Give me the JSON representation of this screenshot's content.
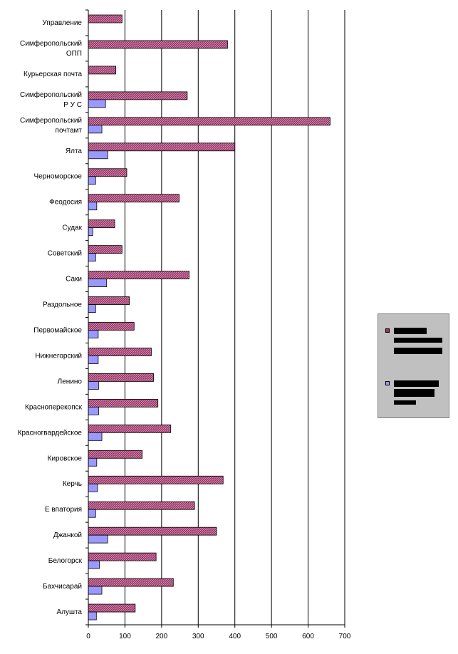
{
  "chart_data": {
    "type": "bar",
    "orientation": "horizontal",
    "categories": [
      "Управление",
      "Симферопольский ОПП",
      "Курьерская почта",
      "Симферопольский РУС",
      "Симферопольский почтамт",
      "Ялта",
      "Черноморское",
      "Феодосия",
      "Судак",
      "Советский",
      "Саки",
      "Раздольное",
      "Первомайское",
      "Нижнегорский",
      "Ленино",
      "Красноперекопск",
      "Красногвардейское",
      "Кировское",
      "Керчь",
      "Евпатория",
      "Джанкой",
      "Белогорск",
      "Бахчисарай",
      "Алушта"
    ],
    "category_lines": [
      [
        "Управление"
      ],
      [
        "Симферопольский",
        "ОПП"
      ],
      [
        "Курьерская почта"
      ],
      [
        "Симферопольский",
        "Р У С"
      ],
      [
        "Симферопольский",
        "почтамт"
      ],
      [
        "Ялта"
      ],
      [
        "Черноморское"
      ],
      [
        "Феодосия"
      ],
      [
        "Судак"
      ],
      [
        "Советский"
      ],
      [
        "Саки"
      ],
      [
        "Раздольное"
      ],
      [
        "Первомайское"
      ],
      [
        "Нижнегорский"
      ],
      [
        "Ленино"
      ],
      [
        "Красноперекопск"
      ],
      [
        "Красногвардейское"
      ],
      [
        "Кировское"
      ],
      [
        "Керчь"
      ],
      [
        "Е впатория"
      ],
      [
        "Джанкой"
      ],
      [
        "Белогорск"
      ],
      [
        "Бахчисарай"
      ],
      [
        "Алушта"
      ]
    ],
    "series": [
      {
        "values": [
          92,
          380,
          75,
          270,
          660,
          400,
          105,
          248,
          72,
          92,
          275,
          112,
          125,
          172,
          178,
          190,
          225,
          147,
          368,
          290,
          350,
          185,
          232,
          128
        ],
        "color": "#993366",
        "pattern": "hatch"
      },
      {
        "values": [
          0,
          0,
          0,
          47,
          37,
          53,
          20,
          23,
          12,
          20,
          50,
          20,
          27,
          27,
          28,
          28,
          37,
          23,
          25,
          20,
          53,
          30,
          37,
          22
        ],
        "color": "#9999ff"
      }
    ],
    "xlim": [
      0,
      700
    ],
    "xticks": [
      0,
      100,
      200,
      300,
      400,
      500,
      600,
      700
    ],
    "grid": "vertical",
    "legend_position": "right",
    "legend_text_redacted": true
  }
}
